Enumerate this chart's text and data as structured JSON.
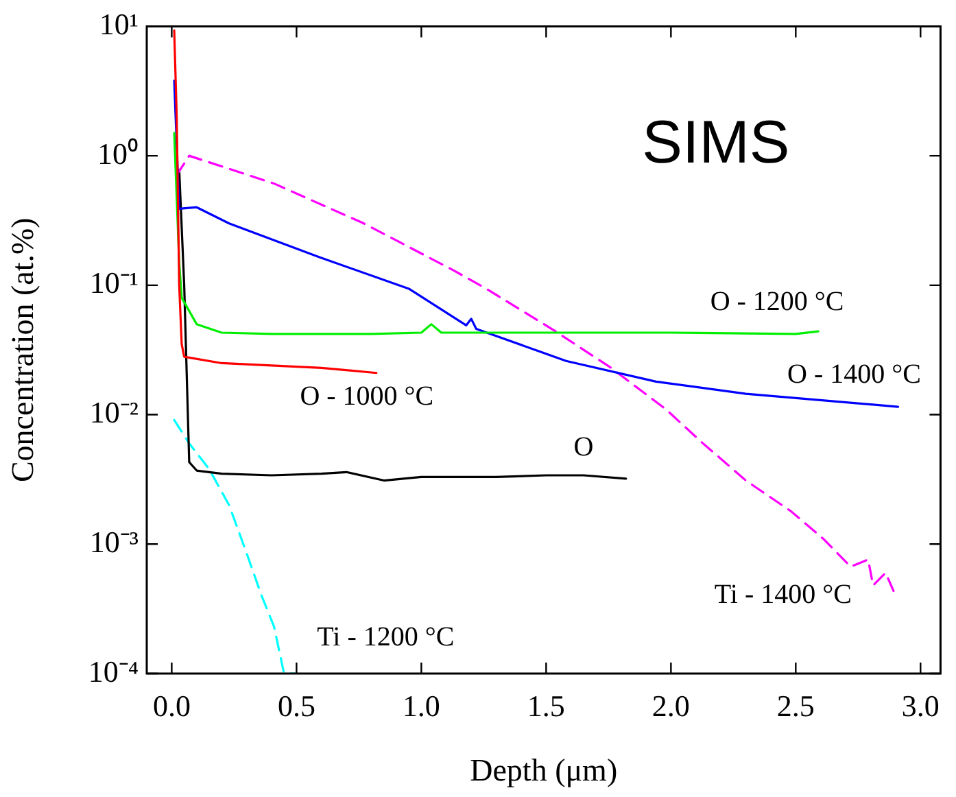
{
  "chart_data": {
    "type": "line",
    "title": "SIMS",
    "xlabel": "Depth (μm)",
    "ylabel": "Concentration (at.%)",
    "log": "y",
    "marker": "none",
    "grid": false,
    "legend": false,
    "xlim": [
      -0.1,
      3.08
    ],
    "ylim": [
      0.0001,
      10
    ],
    "xticks": [
      {
        "value": 0,
        "label": "0.0"
      },
      {
        "value": 0.5,
        "label": "0.5"
      },
      {
        "value": 1,
        "label": "1.0"
      },
      {
        "value": 1.5,
        "label": "1.5"
      },
      {
        "value": 2,
        "label": "2.0"
      },
      {
        "value": 2.5,
        "label": "2.5"
      },
      {
        "value": 3,
        "label": "3.0"
      }
    ],
    "yticks": [
      {
        "value": 0.0001,
        "label": "10⁻⁴"
      },
      {
        "value": 0.001,
        "label": "10⁻³"
      },
      {
        "value": 0.01,
        "label": "10⁻²"
      },
      {
        "value": 0.1,
        "label": "10⁻¹"
      },
      {
        "value": 1,
        "label": "10⁰"
      },
      {
        "value": 10,
        "label": "10¹"
      }
    ],
    "series": [
      {
        "name": "O - 1000 °C",
        "color": "#ff0000",
        "line_style": "solid",
        "x": [
          0.01,
          0.02,
          0.03,
          0.04,
          0.05,
          0.2,
          0.4,
          0.6,
          0.82
        ],
        "values": [
          9.3,
          2,
          0.1,
          0.035,
          0.028,
          0.025,
          0.024,
          0.023,
          0.021
        ]
      },
      {
        "name": "O - 1200 °C",
        "color": "#00ee00",
        "line_style": "solid",
        "x": [
          0.01,
          0.03,
          0.04,
          0.1,
          0.2,
          0.4,
          0.6,
          0.8,
          1.0,
          1.04,
          1.08,
          1.5,
          2.0,
          2.5,
          2.59
        ],
        "values": [
          1.5,
          0.15,
          0.08,
          0.05,
          0.043,
          0.042,
          0.042,
          0.042,
          0.043,
          0.05,
          0.043,
          0.043,
          0.043,
          0.042,
          0.044
        ]
      },
      {
        "name": "O - 1400 °C",
        "color": "#0000ff",
        "line_style": "solid",
        "x": [
          0.01,
          0.03,
          0.1,
          0.23,
          0.59,
          0.95,
          1.18,
          1.2,
          1.22,
          1.58,
          1.94,
          2.3,
          2.91
        ],
        "values": [
          3.8,
          0.39,
          0.4,
          0.3,
          0.165,
          0.094,
          0.049,
          0.055,
          0.046,
          0.026,
          0.018,
          0.0145,
          0.0115
        ]
      },
      {
        "name": "Ti - 1400 °C",
        "color": "#ff00ff",
        "line_style": "dashed",
        "x": [
          0.02,
          0.07,
          0.41,
          0.77,
          1.13,
          1.26,
          1.53,
          1.76,
          1.98,
          2.12,
          2.3,
          2.48,
          2.61,
          2.72,
          2.79,
          2.81,
          2.86,
          2.9
        ],
        "values": [
          0.71,
          1.0,
          0.61,
          0.3,
          0.13,
          0.094,
          0.045,
          0.023,
          0.011,
          0.0062,
          0.0031,
          0.0018,
          0.0011,
          0.00067,
          0.00076,
          0.00048,
          0.0006,
          0.0004
        ]
      },
      {
        "name": "O",
        "color": "#000000",
        "line_style": "solid",
        "x": [
          0.03,
          0.05,
          0.07,
          0.1,
          0.2,
          0.4,
          0.6,
          0.7,
          0.85,
          1.0,
          1.3,
          1.5,
          1.65,
          1.82
        ],
        "values": [
          0.78,
          0.1,
          0.0043,
          0.0037,
          0.0035,
          0.0034,
          0.0035,
          0.0036,
          0.0031,
          0.0033,
          0.0033,
          0.0034,
          0.0034,
          0.0032
        ]
      },
      {
        "name": "Ti - 1200 °C",
        "color": "#00ffff",
        "line_style": "dashed",
        "x": [
          0.01,
          0.07,
          0.15,
          0.23,
          0.3,
          0.36,
          0.41,
          0.45,
          0.5
        ],
        "values": [
          0.0091,
          0.006,
          0.0038,
          0.002,
          0.00085,
          0.0004,
          0.00023,
          0.0001,
          0.0001
        ]
      }
    ]
  }
}
